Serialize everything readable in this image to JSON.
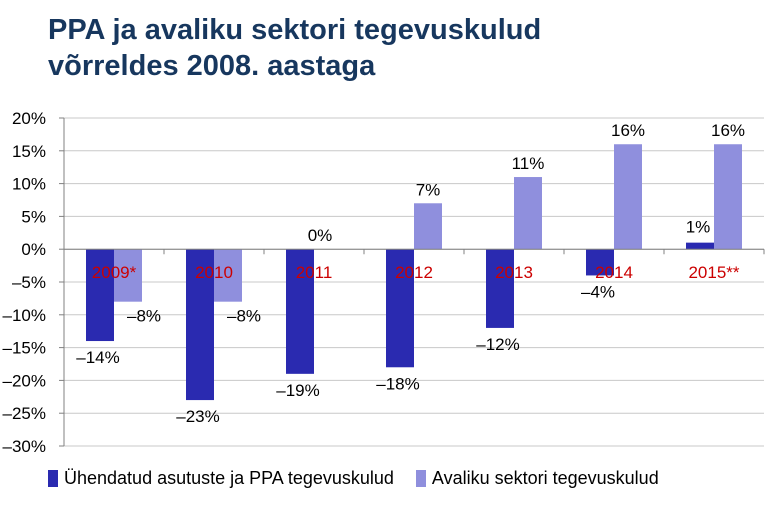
{
  "title_line1": "PPA ja avaliku sektori tegevuskulud",
  "title_line2": "võrreldes 2008. aastaga",
  "colors": {
    "title": "#17375e",
    "series1": "#2a2ab0",
    "series2": "#8f8fdd",
    "category_label": "#cc0000",
    "gridline": "#c8c8c8",
    "axis": "#808080"
  },
  "chart_data": {
    "type": "bar",
    "title": "PPA ja avaliku sektori tegevuskulud võrreldes 2008. aastaga",
    "categories": [
      "2009*",
      "2010",
      "2011",
      "2012",
      "2013",
      "2014",
      "2015**"
    ],
    "series": [
      {
        "name": "Ühendatud asutuste ja PPA tegevuskulud",
        "values": [
          -14,
          -23,
          -19,
          -18,
          -12,
          -4,
          1
        ],
        "labels": [
          "–14%",
          "–23%",
          "–19%",
          "–18%",
          "–12%",
          "–4%",
          "1%"
        ]
      },
      {
        "name": "Avaliku sektori tegevuskulud",
        "values": [
          -8,
          -8,
          0,
          7,
          11,
          16,
          16
        ],
        "labels": [
          "–8%",
          "–8%",
          "0%",
          "7%",
          "11%",
          "16%",
          "16%"
        ]
      }
    ],
    "y_ticks": [
      20,
      15,
      10,
      5,
      0,
      -5,
      -10,
      -15,
      -20,
      -25,
      -30
    ],
    "y_tick_labels": [
      "20%",
      "15%",
      "10%",
      "5%",
      "0%",
      "–5%",
      "–10%",
      "–15%",
      "–20%",
      "–25%",
      "–30%"
    ],
    "ylim": [
      -30,
      20
    ],
    "grid": true,
    "legend_position": "bottom",
    "xlabel": "",
    "ylabel": ""
  }
}
